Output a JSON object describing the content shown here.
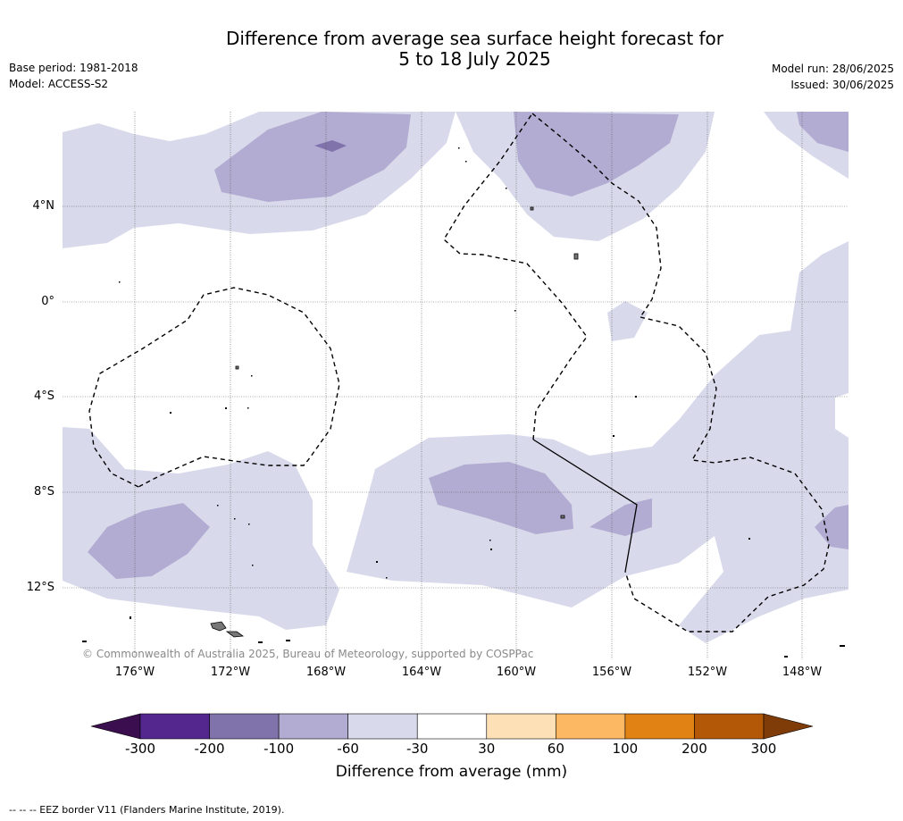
{
  "title_line1": "Difference from average sea surface height forecast for",
  "title_line2": "5 to 18 July 2025",
  "base_period": "Base period: 1981-2018",
  "model": "Model: ACCESS-S2",
  "model_run": "Model run: 28/06/2025",
  "issued": "Issued: 30/06/2025",
  "lat_labels": [
    "4°N",
    "0°",
    "4°S",
    "8°S",
    "12°S"
  ],
  "lon_labels": [
    "176°W",
    "172°W",
    "168°W",
    "164°W",
    "160°W",
    "156°W",
    "152°W",
    "148°W"
  ],
  "copyright": "© Commonwealth of Australia 2025, Bureau of Meteorology, supported by COSPPac",
  "colorbar": {
    "label": "Difference from average (mm)",
    "ticks": [
      "-300",
      "-200",
      "-100",
      "-60",
      "-30",
      "30",
      "60",
      "100",
      "200",
      "300"
    ],
    "colors": [
      "#3b0f4f",
      "#54278f",
      "#8073ac",
      "#b2abd2",
      "#d8daeb",
      "#ffffff",
      "#fee0b6",
      "#fdb863",
      "#e08214",
      "#b35806",
      "#7f3b08"
    ]
  },
  "footer": "--  --  -- EEZ border V11 (Flanders Marine Institute, 2019)."
}
